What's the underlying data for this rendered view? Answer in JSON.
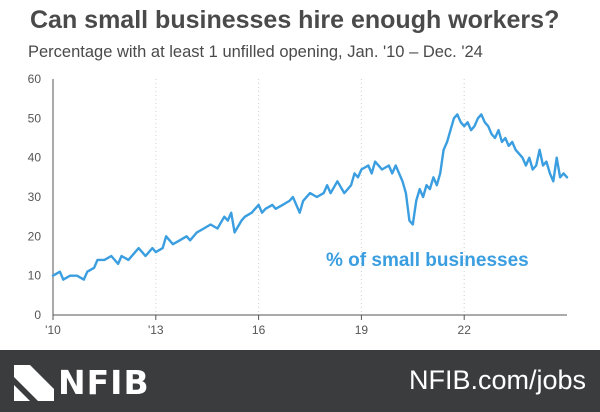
{
  "header": {
    "title": "Can small businesses hire enough workers?",
    "subtitle": "Percentage with at least 1 unfilled opening, Jan. '10 –  Dec. '24"
  },
  "footer": {
    "brand": "NFIB",
    "url": "NFIB.com/jobs",
    "background": "#3b3c3e"
  },
  "chart_data": {
    "type": "line",
    "title": "Can small businesses hire enough workers?",
    "subtitle": "Percentage with at least 1 unfilled opening, Jan. '10 –  Dec. '24",
    "xlabel": "",
    "ylabel": "",
    "xlim": [
      2010,
      2025
    ],
    "ylim": [
      0,
      60
    ],
    "yticks": [
      0,
      10,
      20,
      30,
      40,
      50,
      60
    ],
    "xticks": [
      {
        "value": 2010,
        "label": "'10"
      },
      {
        "value": 2013,
        "label": "'13"
      },
      {
        "value": 2016,
        "label": "16"
      },
      {
        "value": 2019,
        "label": "19"
      },
      {
        "value": 2022,
        "label": "22"
      }
    ],
    "grid": "vertical dotted",
    "annotation": "% of small businesses",
    "series": [
      {
        "name": "% of small businesses",
        "color": "#3a9ee0",
        "points": [
          [
            2010.0,
            10
          ],
          [
            2010.2,
            11
          ],
          [
            2010.3,
            9
          ],
          [
            2010.5,
            10
          ],
          [
            2010.7,
            10
          ],
          [
            2010.9,
            9
          ],
          [
            2011.0,
            11
          ],
          [
            2011.2,
            12
          ],
          [
            2011.3,
            14
          ],
          [
            2011.5,
            14
          ],
          [
            2011.7,
            15
          ],
          [
            2011.9,
            13
          ],
          [
            2012.0,
            15
          ],
          [
            2012.2,
            14
          ],
          [
            2012.4,
            16
          ],
          [
            2012.5,
            17
          ],
          [
            2012.7,
            15
          ],
          [
            2012.9,
            17
          ],
          [
            2013.0,
            16
          ],
          [
            2013.2,
            17
          ],
          [
            2013.3,
            20
          ],
          [
            2013.5,
            18
          ],
          [
            2013.7,
            19
          ],
          [
            2013.9,
            20
          ],
          [
            2014.0,
            19
          ],
          [
            2014.2,
            21
          ],
          [
            2014.4,
            22
          ],
          [
            2014.6,
            23
          ],
          [
            2014.8,
            22
          ],
          [
            2015.0,
            25
          ],
          [
            2015.1,
            24
          ],
          [
            2015.2,
            26
          ],
          [
            2015.3,
            21
          ],
          [
            2015.5,
            24
          ],
          [
            2015.6,
            25
          ],
          [
            2015.8,
            26
          ],
          [
            2016.0,
            28
          ],
          [
            2016.1,
            26
          ],
          [
            2016.2,
            27
          ],
          [
            2016.4,
            28
          ],
          [
            2016.5,
            27
          ],
          [
            2016.7,
            28
          ],
          [
            2016.9,
            29
          ],
          [
            2017.0,
            30
          ],
          [
            2017.2,
            26
          ],
          [
            2017.3,
            29
          ],
          [
            2017.5,
            31
          ],
          [
            2017.7,
            30
          ],
          [
            2017.9,
            31
          ],
          [
            2018.0,
            33
          ],
          [
            2018.1,
            31
          ],
          [
            2018.3,
            34
          ],
          [
            2018.5,
            31
          ],
          [
            2018.7,
            33
          ],
          [
            2018.8,
            36
          ],
          [
            2018.9,
            35
          ],
          [
            2019.0,
            37
          ],
          [
            2019.2,
            38
          ],
          [
            2019.3,
            36
          ],
          [
            2019.4,
            39
          ],
          [
            2019.6,
            37
          ],
          [
            2019.8,
            38
          ],
          [
            2019.9,
            36
          ],
          [
            2020.0,
            38
          ],
          [
            2020.2,
            34
          ],
          [
            2020.3,
            31
          ],
          [
            2020.4,
            24
          ],
          [
            2020.5,
            23
          ],
          [
            2020.6,
            29
          ],
          [
            2020.7,
            32
          ],
          [
            2020.8,
            30
          ],
          [
            2020.9,
            33
          ],
          [
            2021.0,
            32
          ],
          [
            2021.1,
            35
          ],
          [
            2021.2,
            33
          ],
          [
            2021.3,
            36
          ],
          [
            2021.4,
            42
          ],
          [
            2021.5,
            44
          ],
          [
            2021.6,
            47
          ],
          [
            2021.7,
            50
          ],
          [
            2021.8,
            51
          ],
          [
            2021.9,
            49
          ],
          [
            2022.0,
            48
          ],
          [
            2022.1,
            49
          ],
          [
            2022.2,
            47
          ],
          [
            2022.3,
            48
          ],
          [
            2022.4,
            50
          ],
          [
            2022.5,
            51
          ],
          [
            2022.6,
            49
          ],
          [
            2022.7,
            48
          ],
          [
            2022.8,
            46
          ],
          [
            2022.9,
            45
          ],
          [
            2023.0,
            47
          ],
          [
            2023.1,
            44
          ],
          [
            2023.2,
            45
          ],
          [
            2023.3,
            43
          ],
          [
            2023.4,
            44
          ],
          [
            2023.5,
            42
          ],
          [
            2023.6,
            41
          ],
          [
            2023.7,
            40
          ],
          [
            2023.8,
            38
          ],
          [
            2023.9,
            40
          ],
          [
            2024.0,
            37
          ],
          [
            2024.1,
            38
          ],
          [
            2024.2,
            42
          ],
          [
            2024.3,
            38
          ],
          [
            2024.4,
            39
          ],
          [
            2024.5,
            36
          ],
          [
            2024.6,
            34
          ],
          [
            2024.7,
            40
          ],
          [
            2024.8,
            35
          ],
          [
            2024.9,
            36
          ],
          [
            2025.0,
            35
          ]
        ]
      }
    ]
  }
}
